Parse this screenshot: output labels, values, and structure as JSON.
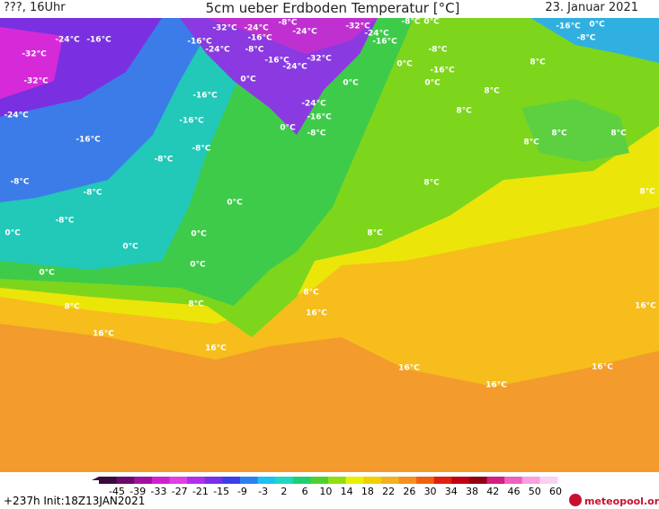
{
  "header": {
    "left": "???, 16Uhr",
    "title": "5cm ueber Erdboden Temperatur [°C]",
    "right": "23. Januar 2021"
  },
  "contour_labels": [
    "-24°C",
    "-16°C",
    "-32°C",
    "-32°C",
    "-24°C",
    "-16°C",
    "-8°C",
    "-8°C",
    "-8°C",
    "-8°C",
    "0°C",
    "0°C",
    "0°C",
    "0°C",
    "0°C",
    "8°C",
    "8°C",
    "16°C",
    "16°C",
    "8°C",
    "16°C",
    "0°C",
    "8°C",
    "8°C",
    "16°C",
    "16°C",
    "16°C",
    "16°C",
    "8°C",
    "8°C",
    "8°C",
    "8°C",
    "8°C",
    "8°C",
    "8°C",
    "-16°C",
    "-8°C",
    "0°C",
    "0°C",
    "-16°C",
    "0°C",
    "-8°C",
    "-8°C",
    "0°C",
    "-16°C",
    "-24°C",
    "-32°C",
    "0°C",
    "0°C",
    "-24°C",
    "-16°C",
    "-8°C",
    "0°C",
    "-16°C",
    "-16°C",
    "-8°C",
    "-16°C",
    "-24°C",
    "-8°C",
    "-16°C",
    "-16°C",
    "-24°C",
    "-32°C",
    "-24°C",
    "-32°C",
    "-24°C",
    "-8°C"
  ],
  "colorbar": {
    "ticks": [
      -45,
      -39,
      -33,
      -27,
      -21,
      -15,
      -9,
      -3,
      2,
      6,
      10,
      14,
      18,
      22,
      26,
      30,
      34,
      38,
      42,
      46,
      50,
      60
    ],
    "colors": [
      "#3a0a3a",
      "#6a0a6a",
      "#a010a0",
      "#d020d0",
      "#e040e0",
      "#b030e8",
      "#7a30e8",
      "#3a40e8",
      "#2a80f0",
      "#20c0f0",
      "#20d8c0",
      "#20d070",
      "#50d030",
      "#90e010",
      "#e8f000",
      "#f0d000",
      "#f4b020",
      "#f49020",
      "#f06010",
      "#e02010",
      "#c00010",
      "#900010",
      "#d02080",
      "#f060c0",
      "#f8a0e0",
      "#fcd0f0"
    ]
  },
  "footer": {
    "run": "+237h Init:18Z13JAN2021",
    "logo": "meteopool.org"
  }
}
